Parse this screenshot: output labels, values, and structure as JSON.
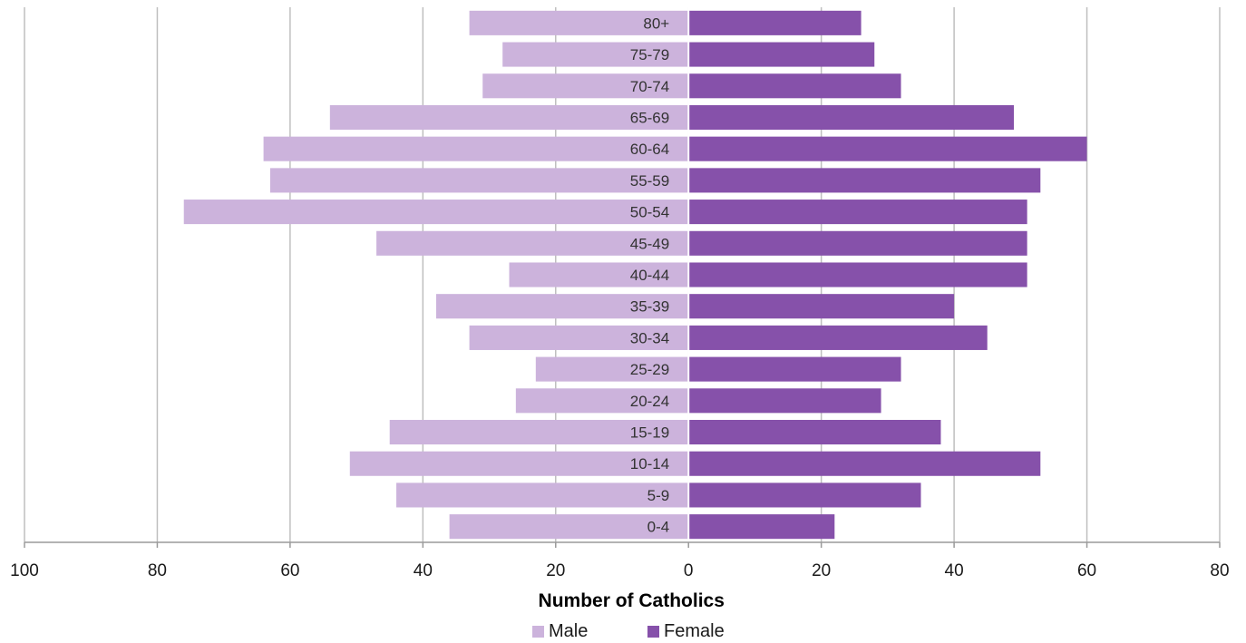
{
  "chart_data": {
    "type": "bar",
    "orientation": "horizontal",
    "layout": "population-pyramid",
    "categories": [
      "80+",
      "75-79",
      "70-74",
      "65-69",
      "60-64",
      "55-59",
      "50-54",
      "45-49",
      "40-44",
      "35-39",
      "30-34",
      "25-29",
      "20-24",
      "15-19",
      "10-14",
      "5-9",
      "0-4"
    ],
    "series": [
      {
        "name": "Male",
        "side": "left",
        "color": "#ccb3dc",
        "values": [
          33,
          28,
          31,
          54,
          64,
          63,
          76,
          47,
          27,
          38,
          33,
          23,
          26,
          45,
          51,
          44,
          36
        ]
      },
      {
        "name": "Female",
        "side": "right",
        "color": "#8651aa",
        "values": [
          26,
          28,
          32,
          49,
          60,
          53,
          51,
          51,
          51,
          40,
          45,
          32,
          29,
          38,
          53,
          35,
          22
        ]
      }
    ],
    "xlabel": "Number of Catholics",
    "xlim": [
      -100,
      80
    ],
    "xticks": [
      -100,
      -80,
      -60,
      -40,
      -20,
      0,
      20,
      40,
      60,
      80
    ],
    "xtick_labels": [
      "100",
      "80",
      "60",
      "40",
      "20",
      "0",
      "20",
      "40",
      "60",
      "80"
    ],
    "grid": "vertical",
    "grid_color": "#bfbfbf",
    "legend_position": "bottom"
  }
}
